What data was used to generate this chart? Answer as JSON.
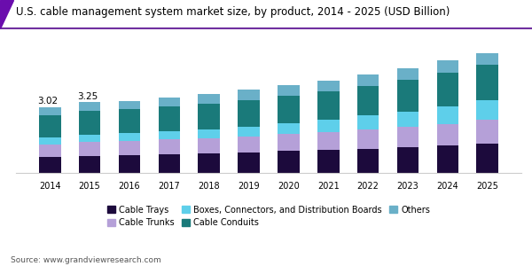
{
  "title": "U.S. cable management system market size, by product, 2014 - 2025 (USD Billion)",
  "source": "Source: www.grandviewresearch.com",
  "years": [
    2014,
    2015,
    2016,
    2017,
    2018,
    2019,
    2020,
    2021,
    2022,
    2023,
    2024,
    2025
  ],
  "annotations": {
    "2014": "3.02",
    "2015": "3.25"
  },
  "segment_order": [
    "Cable Trays",
    "Cable Trunks",
    "Boxes, Connectors, and Distribution Boards",
    "Cable Conduits",
    "Others"
  ],
  "segments": {
    "Cable Trays": {
      "color": "#1c0a3c",
      "values": [
        0.72,
        0.78,
        0.82,
        0.86,
        0.9,
        0.95,
        1.0,
        1.06,
        1.12,
        1.18,
        1.25,
        1.33
      ]
    },
    "Cable Trunks": {
      "color": "#b5a0d8",
      "values": [
        0.6,
        0.64,
        0.65,
        0.68,
        0.7,
        0.74,
        0.78,
        0.82,
        0.87,
        0.93,
        1.0,
        1.1
      ]
    },
    "Boxes, Connectors, and Distribution Boards": {
      "color": "#5ecfea",
      "values": [
        0.32,
        0.34,
        0.35,
        0.37,
        0.4,
        0.44,
        0.5,
        0.57,
        0.64,
        0.72,
        0.82,
        0.93
      ]
    },
    "Cable Conduits": {
      "color": "#1a7a7a",
      "values": [
        1.0,
        1.08,
        1.1,
        1.14,
        1.18,
        1.22,
        1.26,
        1.3,
        1.36,
        1.44,
        1.52,
        1.6
      ]
    },
    "Others": {
      "color": "#6ab0c8",
      "values": [
        0.38,
        0.41,
        0.4,
        0.42,
        0.44,
        0.46,
        0.48,
        0.5,
        0.52,
        0.55,
        0.58,
        0.62
      ]
    }
  },
  "ylim": [
    0,
    5.5
  ],
  "background_color": "#ffffff",
  "title_fontsize": 8.5,
  "legend_fontsize": 7,
  "source_fontsize": 6.5,
  "accent_color": "#6a0dad",
  "header_line_color": "#7030a0"
}
